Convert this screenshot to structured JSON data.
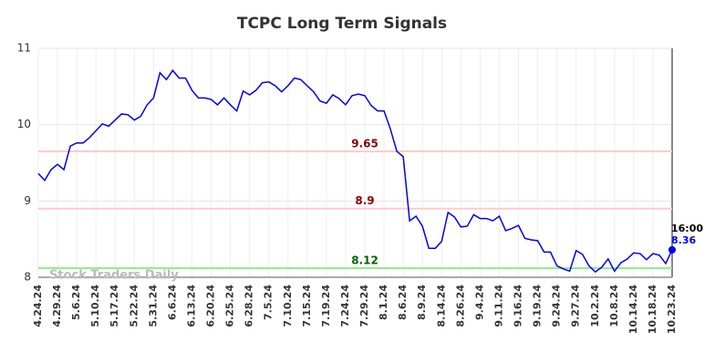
{
  "chart_data": {
    "type": "line",
    "title": "TCPC Long Term Signals",
    "categories": [
      "4.24.24",
      null,
      null,
      "4.29.24",
      null,
      null,
      "5.6.24",
      null,
      null,
      "5.10.24",
      null,
      null,
      "5.17.24",
      null,
      null,
      "5.22.24",
      null,
      null,
      "5.31.24",
      null,
      null,
      "6.6.24",
      null,
      null,
      "6.13.24",
      null,
      null,
      "6.20.24",
      null,
      null,
      "6.25.24",
      null,
      null,
      "6.28.24",
      null,
      null,
      "7.5.24",
      null,
      null,
      "7.10.24",
      null,
      null,
      "7.15.24",
      null,
      null,
      "7.19.24",
      null,
      null,
      "7.24.24",
      null,
      null,
      "7.29.24",
      null,
      null,
      "8.1.24",
      null,
      null,
      "8.6.24",
      null,
      null,
      "8.9.24",
      null,
      null,
      "8.14.24",
      null,
      null,
      "8.26.24",
      null,
      null,
      "9.4.24",
      null,
      null,
      "9.11.24",
      null,
      null,
      "9.16.24",
      null,
      null,
      "9.19.24",
      null,
      null,
      "9.24.24",
      null,
      null,
      "9.27.24",
      null,
      null,
      "10.2.24",
      null,
      null,
      "10.8.24",
      null,
      null,
      "10.14.24",
      null,
      null,
      "10.18.24",
      null,
      null,
      "10.23.24"
    ],
    "series": [
      {
        "name": "TCPC",
        "color": "#0000ee",
        "values": [
          9.36,
          9.27,
          9.41,
          9.48,
          9.41,
          9.72,
          9.76,
          9.76,
          9.83,
          9.92,
          10.01,
          9.98,
          10.06,
          10.14,
          10.13,
          10.06,
          10.11,
          10.26,
          10.35,
          10.68,
          10.59,
          10.71,
          10.61,
          10.61,
          10.45,
          10.35,
          10.35,
          10.33,
          10.26,
          10.35,
          10.26,
          10.18,
          10.44,
          10.39,
          10.45,
          10.55,
          10.56,
          10.51,
          10.43,
          10.51,
          10.61,
          10.59,
          10.51,
          10.43,
          10.31,
          10.28,
          10.39,
          10.34,
          10.26,
          10.38,
          10.4,
          10.38,
          10.25,
          10.18,
          10.18,
          9.94,
          9.65,
          9.58,
          8.74,
          8.8,
          8.67,
          8.38,
          8.38,
          8.47,
          8.85,
          8.79,
          8.66,
          8.67,
          8.82,
          8.77,
          8.77,
          8.74,
          8.8,
          8.61,
          8.64,
          8.68,
          8.51,
          8.49,
          8.48,
          8.33,
          8.33,
          8.15,
          8.11,
          8.08,
          8.35,
          8.3,
          8.15,
          8.07,
          8.13,
          8.24,
          8.08,
          8.19,
          8.24,
          8.32,
          8.31,
          8.23,
          8.31,
          8.29,
          8.18,
          8.36
        ]
      }
    ],
    "ylim": [
      8,
      11
    ],
    "yticks": [
      8,
      9,
      10,
      11
    ],
    "grid": true,
    "signal_lines": [
      {
        "value": 9.65,
        "color": "#ffcccc",
        "label_color": "#8b0000"
      },
      {
        "value": 8.9,
        "color": "#ffcccc",
        "label_color": "#8b0000"
      },
      {
        "value": 8.12,
        "color": "#90ee90",
        "label_color": "#006400"
      }
    ],
    "last_time": "16:00",
    "watermark": "Stock Traders Daily"
  }
}
